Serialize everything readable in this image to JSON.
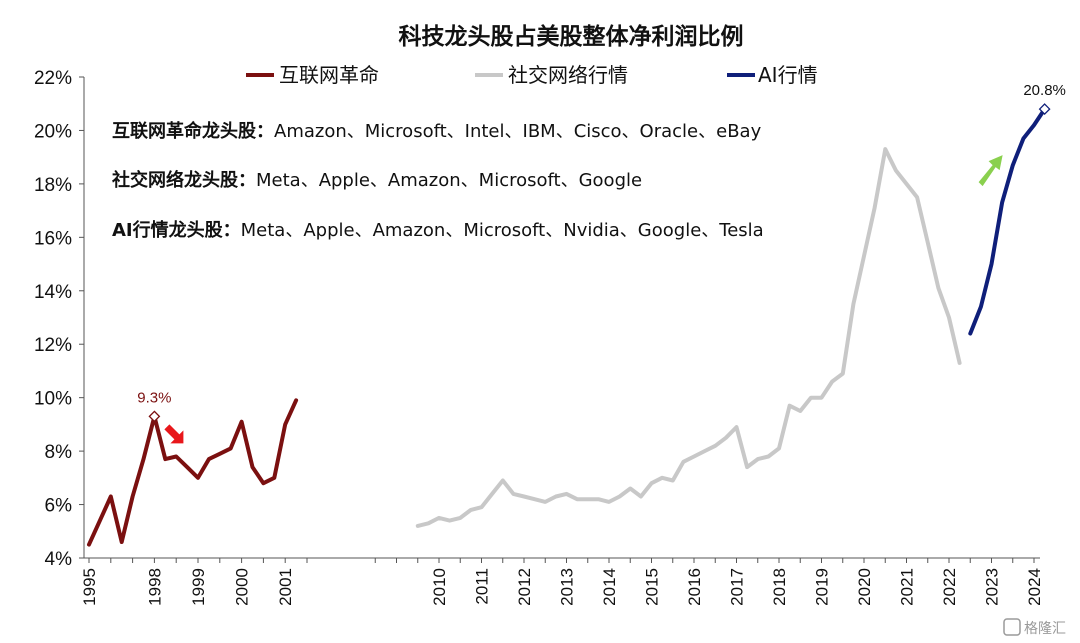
{
  "chart_data": {
    "type": "line",
    "title": "科技龙头股占美股整体净利润比例",
    "xlabel": "",
    "ylabel": "",
    "ylim": [
      4,
      22
    ],
    "y_unit": "%",
    "y_ticks": [
      "4%",
      "6%",
      "8%",
      "10%",
      "12%",
      "14%",
      "16%",
      "18%",
      "20%",
      "22%"
    ],
    "x_ticks": [
      "1995",
      "1998",
      "1999",
      "2000",
      "2001",
      "2010",
      "2011",
      "2012",
      "2013",
      "2014",
      "2015",
      "2016",
      "2017",
      "2018",
      "2019",
      "2020",
      "2021",
      "2022",
      "2023",
      "2024"
    ],
    "grid": false,
    "legend_position": "top",
    "series": [
      {
        "name": "互联网革命",
        "color": "#7b1010",
        "points": [
          {
            "x": 1995.0,
            "y": 4.5
          },
          {
            "x": 1995.25,
            "y": 5.4
          },
          {
            "x": 1995.5,
            "y": 6.3
          },
          {
            "x": 1995.75,
            "y": 4.6
          },
          {
            "x": 1996.0,
            "y": 6.3
          },
          {
            "x": 1996.25,
            "y": 7.7
          },
          {
            "x": 1996.5,
            "y": 9.3
          },
          {
            "x": 1996.75,
            "y": 7.7
          },
          {
            "x": 1997.0,
            "y": 7.8
          },
          {
            "x": 1997.25,
            "y": 7.4
          },
          {
            "x": 1997.5,
            "y": 7.0
          },
          {
            "x": 1997.75,
            "y": 7.7
          },
          {
            "x": 1998.0,
            "y": 7.9
          },
          {
            "x": 1998.25,
            "y": 8.1
          },
          {
            "x": 1998.5,
            "y": 9.1
          },
          {
            "x": 1998.75,
            "y": 7.4
          },
          {
            "x": 1999.0,
            "y": 6.8
          },
          {
            "x": 1999.25,
            "y": 7.0
          },
          {
            "x": 1999.5,
            "y": 9.0
          },
          {
            "x": 1999.75,
            "y": 9.9
          }
        ]
      },
      {
        "name": "社交网络行情",
        "color": "#c8c8c8",
        "points": [
          {
            "x": 2009.5,
            "y": 5.2
          },
          {
            "x": 2009.75,
            "y": 5.3
          },
          {
            "x": 2010.0,
            "y": 5.5
          },
          {
            "x": 2010.25,
            "y": 5.4
          },
          {
            "x": 2010.5,
            "y": 5.5
          },
          {
            "x": 2010.75,
            "y": 5.8
          },
          {
            "x": 2011.0,
            "y": 5.9
          },
          {
            "x": 2011.25,
            "y": 6.4
          },
          {
            "x": 2011.5,
            "y": 6.9
          },
          {
            "x": 2011.75,
            "y": 6.4
          },
          {
            "x": 2012.0,
            "y": 6.3
          },
          {
            "x": 2012.25,
            "y": 6.2
          },
          {
            "x": 2012.5,
            "y": 6.1
          },
          {
            "x": 2012.75,
            "y": 6.3
          },
          {
            "x": 2013.0,
            "y": 6.4
          },
          {
            "x": 2013.25,
            "y": 6.2
          },
          {
            "x": 2013.5,
            "y": 6.2
          },
          {
            "x": 2013.75,
            "y": 6.2
          },
          {
            "x": 2014.0,
            "y": 6.1
          },
          {
            "x": 2014.25,
            "y": 6.3
          },
          {
            "x": 2014.5,
            "y": 6.6
          },
          {
            "x": 2014.75,
            "y": 6.3
          },
          {
            "x": 2015.0,
            "y": 6.8
          },
          {
            "x": 2015.25,
            "y": 7.0
          },
          {
            "x": 2015.5,
            "y": 6.9
          },
          {
            "x": 2015.75,
            "y": 7.6
          },
          {
            "x": 2016.0,
            "y": 7.8
          },
          {
            "x": 2016.25,
            "y": 8.0
          },
          {
            "x": 2016.5,
            "y": 8.2
          },
          {
            "x": 2016.75,
            "y": 8.5
          },
          {
            "x": 2017.0,
            "y": 8.9
          },
          {
            "x": 2017.25,
            "y": 7.4
          },
          {
            "x": 2017.5,
            "y": 7.7
          },
          {
            "x": 2017.75,
            "y": 7.8
          },
          {
            "x": 2018.0,
            "y": 8.1
          },
          {
            "x": 2018.25,
            "y": 9.7
          },
          {
            "x": 2018.5,
            "y": 9.5
          },
          {
            "x": 2018.75,
            "y": 10.0
          },
          {
            "x": 2019.0,
            "y": 10.0
          },
          {
            "x": 2019.25,
            "y": 10.6
          },
          {
            "x": 2019.5,
            "y": 10.9
          },
          {
            "x": 2019.75,
            "y": 13.5
          },
          {
            "x": 2020.0,
            "y": 15.3
          },
          {
            "x": 2020.25,
            "y": 17.1
          },
          {
            "x": 2020.5,
            "y": 19.3
          },
          {
            "x": 2020.75,
            "y": 18.5
          },
          {
            "x": 2021.0,
            "y": 18.0
          },
          {
            "x": 2021.25,
            "y": 17.5
          },
          {
            "x": 2021.5,
            "y": 15.8
          },
          {
            "x": 2021.75,
            "y": 14.1
          },
          {
            "x": 2022.0,
            "y": 13.0
          },
          {
            "x": 2022.25,
            "y": 11.3
          }
        ]
      },
      {
        "name": "AI行情",
        "color": "#0f1f7a",
        "points": [
          {
            "x": 2022.5,
            "y": 12.4
          },
          {
            "x": 2022.75,
            "y": 13.4
          },
          {
            "x": 2023.0,
            "y": 15.0
          },
          {
            "x": 2023.25,
            "y": 17.3
          },
          {
            "x": 2023.5,
            "y": 18.7
          },
          {
            "x": 2023.75,
            "y": 19.7
          },
          {
            "x": 2024.0,
            "y": 20.2
          },
          {
            "x": 2024.25,
            "y": 20.8
          }
        ]
      }
    ],
    "annotations": [
      {
        "series": "互联网革命",
        "x": 1996.5,
        "y": 9.3,
        "label": "9.3%",
        "color": "#7b1010",
        "arrow": "down",
        "arrow_color": "#e8171b"
      },
      {
        "series": "AI行情",
        "x": 2024.25,
        "y": 20.8,
        "label": "20.8%",
        "color": "#111111",
        "arrow": "up",
        "arrow_color": "#8ad04e"
      }
    ],
    "notes": [
      {
        "head": "互联网革命龙头股：",
        "body": "Amazon、Microsoft、Intel、IBM、Cisco、Oracle、eBay"
      },
      {
        "head": "社交网络龙头股：",
        "body": "Meta、Apple、Amazon、Microsoft、Google"
      },
      {
        "head": "AI行情龙头股：",
        "body": "Meta、Apple、Amazon、Microsoft、Nvidia、Google、Tesla"
      }
    ],
    "watermark": "格隆汇"
  }
}
